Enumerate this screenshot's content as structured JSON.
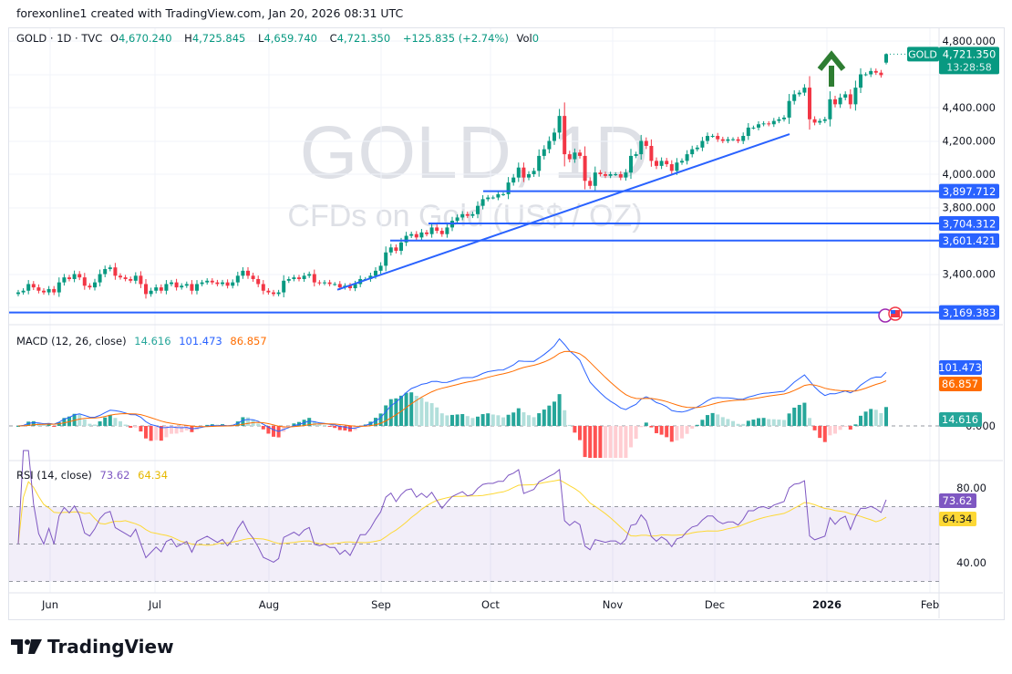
{
  "credit": "forexonline1 created with TradingView.com, Jan 20, 2026 08:31 UTC",
  "header": {
    "symbol": "GOLD · 1D · TVC",
    "o_label": "O",
    "o": "4,670.240",
    "h_label": "H",
    "h": "4,725.845",
    "l_label": "L",
    "l": "4,659.740",
    "c_label": "C",
    "c": "4,721.350",
    "change": "+125.835 (+2.74%)",
    "vol_label": "Vol",
    "vol": "0"
  },
  "watermark": {
    "title": "GOLD, 1D",
    "subtitle": "CFDs on Gold (US$ / OZ)"
  },
  "price_axis": {
    "ticks": [
      "4,800.000",
      "4,400.000",
      "4,200.000",
      "4,000.000",
      "3,800.000",
      "3,400.000"
    ],
    "symbol_tag": "GOLD",
    "last_price": "4,721.350",
    "countdown": "13:28:58"
  },
  "levels": [
    {
      "label": "3,897.712",
      "value": 3897.712
    },
    {
      "label": "3,704.312",
      "value": 3704.312
    },
    {
      "label": "3,601.421",
      "value": 3601.421
    },
    {
      "label": "3,169.383",
      "value": 3169.383
    }
  ],
  "macd": {
    "title": "MACD (12, 26, close)",
    "hist": "14.616",
    "macd": "101.473",
    "signal": "86.857",
    "zero_tick": "0.000"
  },
  "rsi": {
    "title": "RSI (14, close)",
    "rsi": "73.62",
    "ma": "64.34",
    "ticks": [
      "80.00",
      "40.00"
    ]
  },
  "time_axis": [
    "Jun",
    "Jul",
    "Aug",
    "Sep",
    "Oct",
    "Nov",
    "Dec",
    "2026",
    "Feb"
  ],
  "footer": {
    "brand": "TradingView"
  },
  "colors": {
    "up": "#089981",
    "down": "#f23645",
    "line": "#2962ff",
    "signal": "#ff6d00",
    "rsi": "#7e57c2",
    "rsi_ma": "#fdd835"
  },
  "chart_data": {
    "type": "candlestick",
    "symbol": "GOLD",
    "interval": "1D",
    "ylim": [
      3150,
      4850
    ],
    "closes": [
      3290,
      3300,
      3340,
      3320,
      3300,
      3290,
      3310,
      3290,
      3350,
      3380,
      3370,
      3400,
      3380,
      3330,
      3320,
      3350,
      3400,
      3430,
      3440,
      3390,
      3380,
      3370,
      3360,
      3390,
      3340,
      3280,
      3300,
      3320,
      3300,
      3340,
      3350,
      3320,
      3330,
      3340,
      3300,
      3340,
      3350,
      3360,
      3350,
      3340,
      3350,
      3330,
      3350,
      3390,
      3420,
      3390,
      3370,
      3340,
      3300,
      3290,
      3280,
      3290,
      3360,
      3370,
      3380,
      3370,
      3390,
      3400,
      3350,
      3345,
      3350,
      3340,
      3340,
      3320,
      3330,
      3315,
      3340,
      3370,
      3370,
      3390,
      3420,
      3450,
      3530,
      3560,
      3540,
      3590,
      3630,
      3640,
      3620,
      3650,
      3640,
      3680,
      3660,
      3640,
      3680,
      3720,
      3740,
      3760,
      3750,
      3760,
      3810,
      3850,
      3860,
      3860,
      3880,
      3880,
      3950,
      3980,
      4040,
      3980,
      4000,
      4020,
      4110,
      4150,
      4200,
      4250,
      4350,
      4120,
      4090,
      4130,
      4110,
      3960,
      3930,
      4010,
      4000,
      3990,
      4000,
      4000,
      3980,
      4010,
      4110,
      4120,
      4200,
      4170,
      4080,
      4050,
      4080,
      4060,
      4020,
      4070,
      4080,
      4120,
      4150,
      4160,
      4200,
      4230,
      4230,
      4210,
      4200,
      4210,
      4210,
      4200,
      4230,
      4280,
      4280,
      4300,
      4305,
      4300,
      4320,
      4330,
      4340,
      4440,
      4480,
      4490,
      4520,
      4330,
      4310,
      4320,
      4330,
      4450,
      4420,
      4460,
      4480,
      4420,
      4520,
      4600,
      4600,
      4620,
      4610,
      4595,
      4721.35
    ],
    "last": {
      "open": 4670.24,
      "high": 4725.845,
      "low": 4659.74,
      "close": 4721.35
    },
    "trendline": {
      "from": 3306,
      "to": 4241
    },
    "annotation": "up-arrow"
  }
}
